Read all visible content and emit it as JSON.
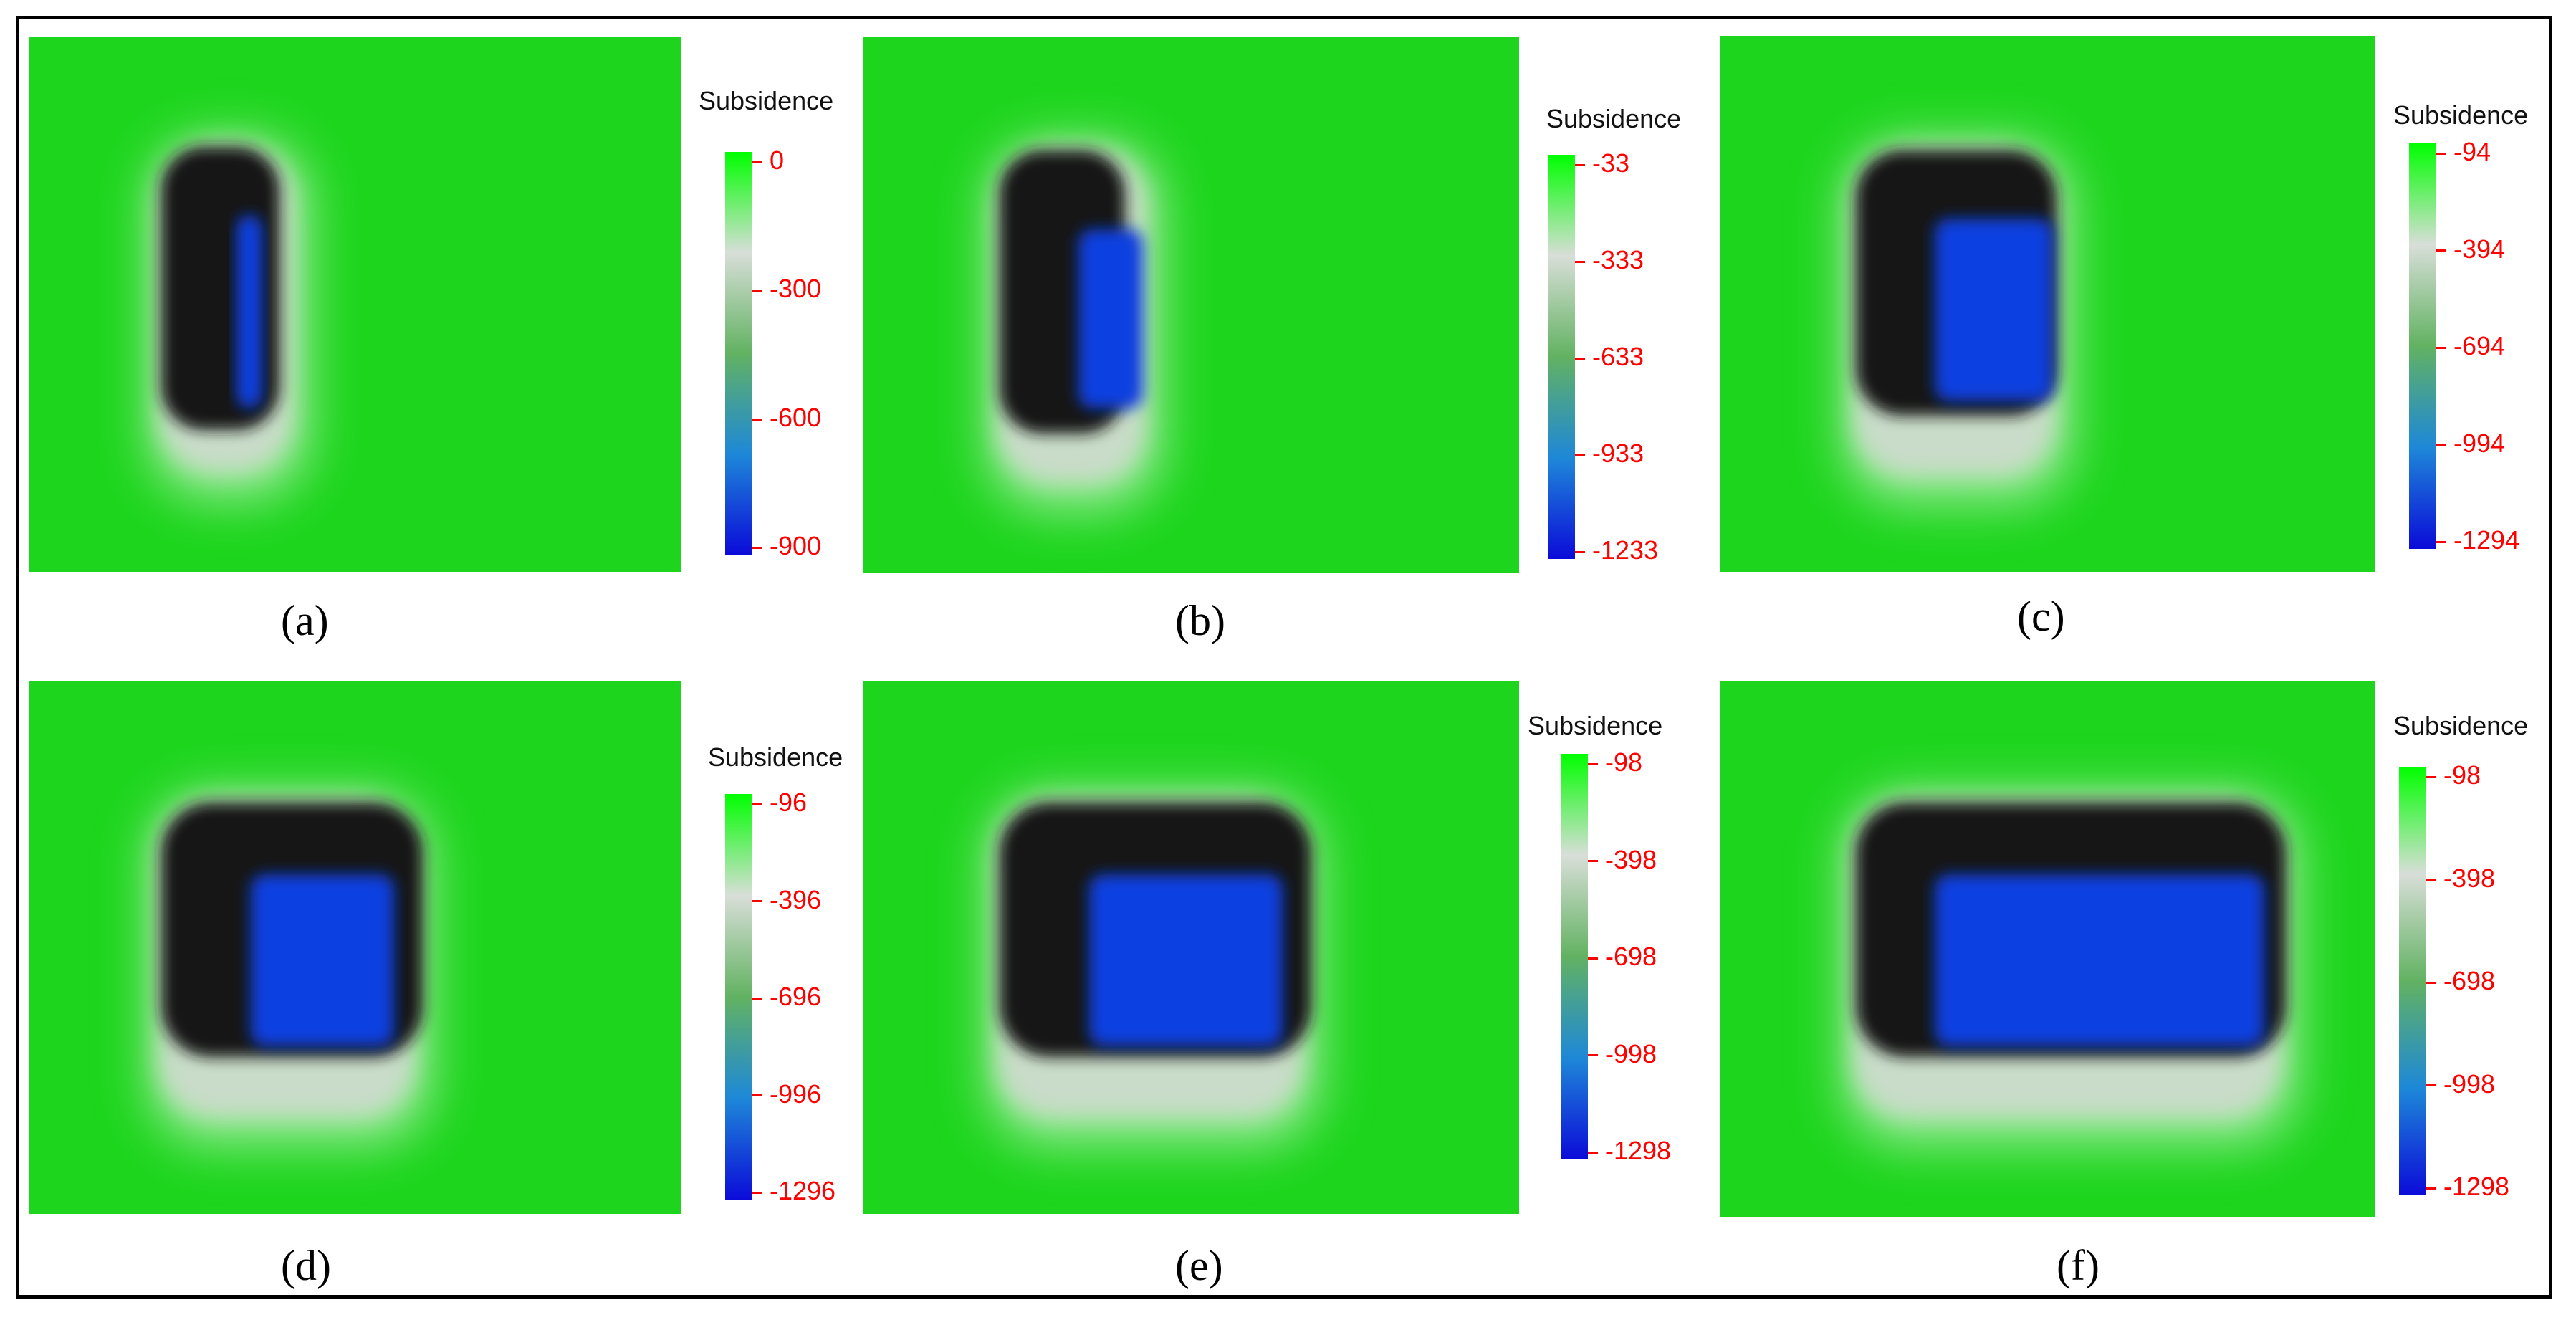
{
  "colors": {
    "field": "#1dd51d",
    "dark_zone": "#141414",
    "deep_zone": "#1040e0",
    "halo": "#c9dcc9",
    "tick_text": "#ff0000",
    "colorbar": [
      "#00ff00",
      "#d8ded8",
      "#62b262",
      "#1e88d8",
      "#0b0bd8"
    ]
  },
  "legend_title": "Subsidence",
  "panels": [
    {
      "caption": "(a)",
      "ticks": [
        "0",
        "-300",
        "-600",
        "-900"
      ]
    },
    {
      "caption": "(b)",
      "ticks": [
        "-33",
        "-333",
        "-633",
        "-933",
        "-1233"
      ]
    },
    {
      "caption": "(c)",
      "ticks": [
        "-94",
        "-394",
        "-694",
        "-994",
        "-1294"
      ]
    },
    {
      "caption": "(d)",
      "ticks": [
        "-96",
        "-396",
        "-696",
        "-996",
        "-1296"
      ]
    },
    {
      "caption": "(e)",
      "ticks": [
        "-98",
        "-398",
        "-698",
        "-998",
        "-1298"
      ]
    },
    {
      "caption": "(f)",
      "ticks": [
        "-98",
        "-398",
        "-698",
        "-998",
        "-1298"
      ]
    }
  ]
}
